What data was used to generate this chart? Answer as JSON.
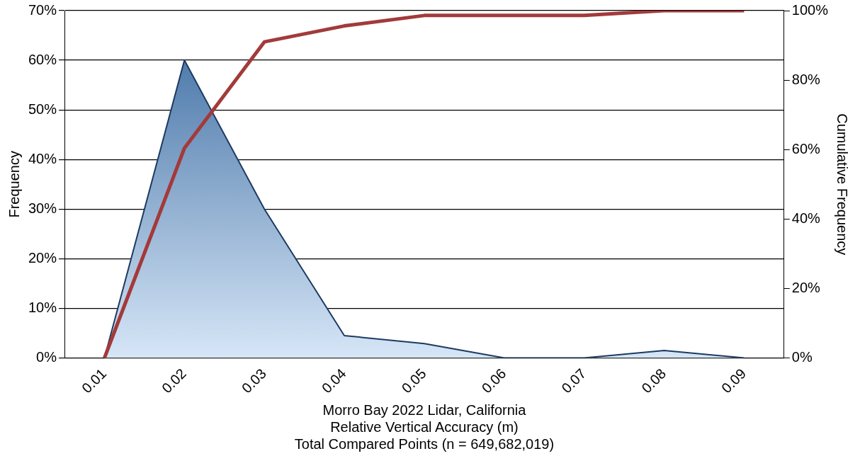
{
  "chart_data": {
    "type": "area",
    "xlabel": "Morro Bay 2022 Lidar, California\nRelative Vertical Accuracy (m)\nTotal Compared Points (n = 649,682,019)",
    "ylabel": "Frequency",
    "y2label": "Cumulative Frequency",
    "categories": [
      "0.01",
      "0.02",
      "0.03",
      "0.04",
      "0.05",
      "0.06",
      "0.07",
      "0.08",
      "0.09"
    ],
    "series": [
      {
        "type": "area",
        "color": "#3a6aa0",
        "values": [
          0,
          60,
          30,
          4.5,
          2.9,
          0,
          0,
          1.5,
          0
        ]
      },
      {
        "type": "line",
        "axis": "y2",
        "color": "#a33a3a",
        "values": [
          0,
          60.4,
          91,
          95.6,
          98.6,
          98.6,
          98.6,
          100,
          100
        ]
      }
    ],
    "ylim": [
      0,
      70
    ],
    "yticks": [
      {
        "value": 0,
        "label": "0%"
      },
      {
        "value": 10,
        "label": "10%"
      },
      {
        "value": 20,
        "label": "20%"
      },
      {
        "value": 30,
        "label": "30%"
      },
      {
        "value": 40,
        "label": "40%"
      },
      {
        "value": 50,
        "label": "50%"
      },
      {
        "value": 60,
        "label": "60%"
      },
      {
        "value": 70,
        "label": "70%"
      }
    ],
    "y2lim": [
      0,
      100
    ],
    "y2ticks": [
      {
        "value": 0,
        "label": "0%"
      },
      {
        "value": 20,
        "label": "20%"
      },
      {
        "value": 40,
        "label": "40%"
      },
      {
        "value": 60,
        "label": "60%"
      },
      {
        "value": 80,
        "label": "80%"
      },
      {
        "value": 100,
        "label": "100%"
      }
    ],
    "grid": "y",
    "legend": false,
    "marker": "none"
  }
}
